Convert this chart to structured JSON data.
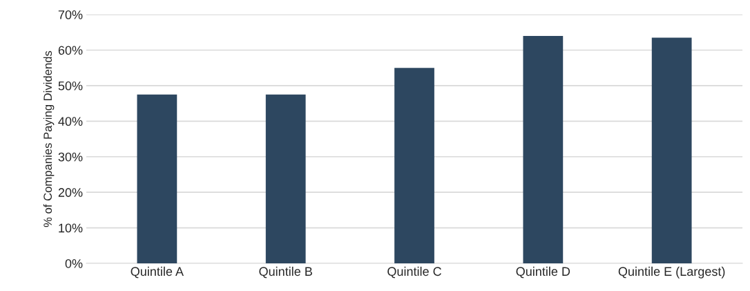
{
  "chart_data": {
    "type": "bar",
    "ylabel": "% of Companies Paying Dividends",
    "categories": [
      "Quintile A",
      "Quintile B",
      "Quintile C",
      "Quintile D",
      "Quintile E (Largest)"
    ],
    "values": [
      47.5,
      47.5,
      55,
      64,
      63.5
    ],
    "color": "#2d4760",
    "ylim": [
      0,
      70
    ],
    "yticks": [
      {
        "value": 0,
        "label": "0%"
      },
      {
        "value": 10,
        "label": "10%"
      },
      {
        "value": 20,
        "label": "20%"
      },
      {
        "value": 30,
        "label": "30%"
      },
      {
        "value": 40,
        "label": "40%"
      },
      {
        "value": 50,
        "label": "50%"
      },
      {
        "value": 60,
        "label": "60%"
      },
      {
        "value": 70,
        "label": "70%"
      }
    ],
    "grid": "y"
  }
}
